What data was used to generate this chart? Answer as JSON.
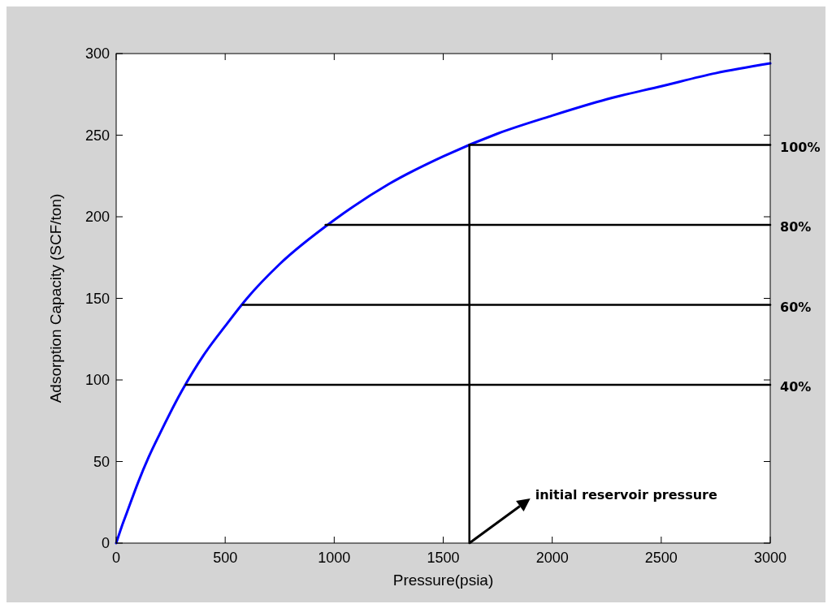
{
  "chart_data": {
    "type": "line",
    "legend": "right",
    "xlabel": "Pressure(psia)",
    "ylabel": "Adsorption Capacity (SCF/ton)",
    "xlim": [
      0,
      3000
    ],
    "ylim": [
      0,
      300
    ],
    "xticks": [
      0,
      500,
      1000,
      1500,
      2000,
      2500,
      3000
    ],
    "yticks": [
      0,
      50,
      100,
      150,
      200,
      250,
      300
    ],
    "series": [
      {
        "color": "#0000ff",
        "x": [
          0,
          25,
          50,
          100,
          150,
          200,
          300,
          400,
          500,
          600,
          750,
          1000,
          1250,
          1500,
          1750,
          2000,
          2250,
          2500,
          2750,
          3000
        ],
        "values": [
          0,
          10,
          19,
          37,
          53,
          67,
          93,
          115,
          133,
          150,
          171,
          198,
          220,
          237,
          251,
          262,
          272,
          280,
          288,
          294
        ]
      },
      {
        "name": "100%",
        "color": "#000000",
        "x": [
          1620,
          3000
        ],
        "values": [
          244,
          244
        ]
      },
      {
        "name": "80%",
        "color": "#000000",
        "x": [
          960,
          3000
        ],
        "values": [
          195,
          195
        ]
      },
      {
        "name": "60%",
        "color": "#000000",
        "x": [
          580,
          3000
        ],
        "values": [
          146,
          146
        ]
      },
      {
        "name": "40%",
        "color": "#000000",
        "x": [
          320,
          3000
        ],
        "values": [
          97,
          97
        ]
      },
      {
        "color": "#000000",
        "x": [
          1620,
          1620
        ],
        "values": [
          0,
          244
        ]
      }
    ],
    "annotations": [
      {
        "text": "initial reservoir pressure",
        "x": 1620,
        "y": 0
      }
    ]
  }
}
